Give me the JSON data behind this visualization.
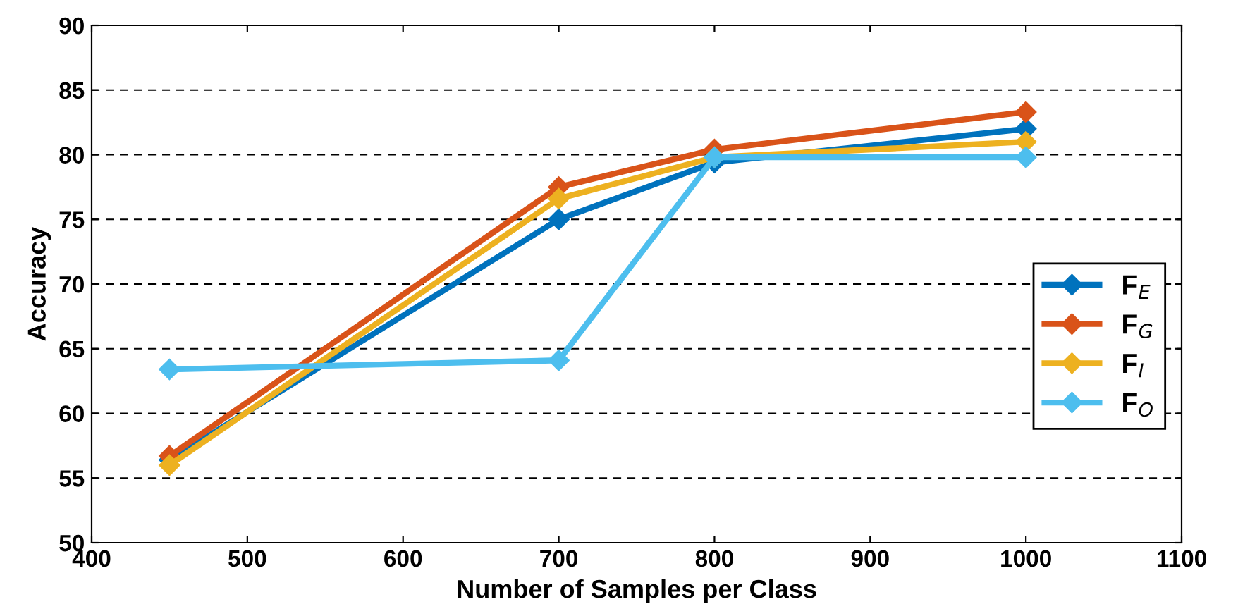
{
  "chart_data": {
    "type": "line",
    "xlabel": "Number of Samples per Class",
    "ylabel": "Accuracy",
    "x": [
      450,
      700,
      800,
      1000
    ],
    "series": [
      {
        "name": "F$_{E}$",
        "color": "#0072bd",
        "values": [
          56.4,
          75.0,
          79.4,
          82.0
        ]
      },
      {
        "name": "F$_{G}$",
        "color": "#d95319",
        "values": [
          56.7,
          77.5,
          80.4,
          83.3
        ]
      },
      {
        "name": "F$_{I}$",
        "color": "#edb120",
        "values": [
          56.0,
          76.6,
          79.8,
          81.0
        ]
      },
      {
        "name": "F$_{O}$",
        "color": "#4dbeee",
        "values": [
          63.4,
          64.1,
          79.8,
          79.8
        ]
      }
    ],
    "xlim": [
      400,
      1100
    ],
    "xticks": [
      400,
      500,
      600,
      700,
      800,
      900,
      1000,
      1100
    ],
    "ylim": [
      50,
      90
    ],
    "yticks": [
      50,
      55,
      60,
      65,
      70,
      75,
      80,
      85,
      90
    ],
    "grid": "y",
    "legend": "right",
    "marker": "diamond",
    "line_style": "solid"
  }
}
